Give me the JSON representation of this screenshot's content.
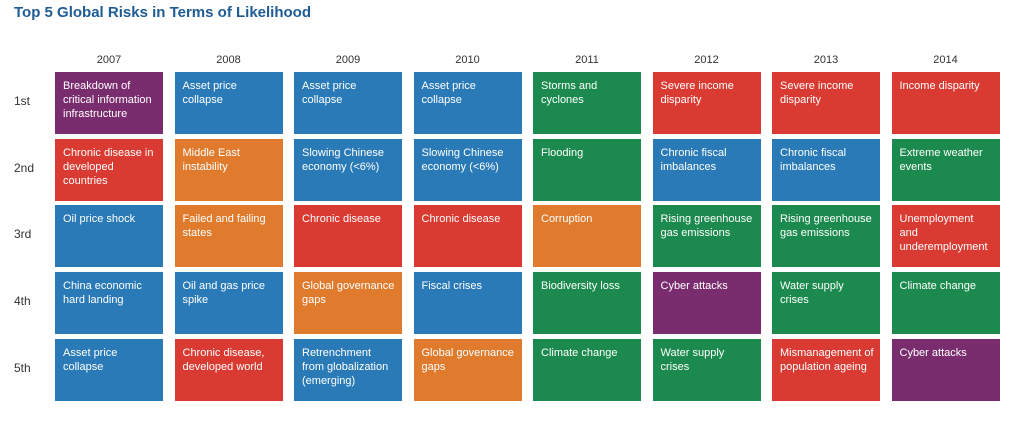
{
  "title": "Top 5 Global Risks in Terms of Likelihood",
  "colors": {
    "economic": "#2a7ab8",
    "geopolitical": "#e07b2e",
    "societal": "#d93a32",
    "environmental": "#1c8a4e",
    "technological": "#7a2d6e"
  },
  "chart_data": {
    "type": "table",
    "title": "Top 5 Global Risks in Terms of Likelihood",
    "years": [
      "2007",
      "2008",
      "2009",
      "2010",
      "2011",
      "2012",
      "2013",
      "2014"
    ],
    "ranks": [
      "1st",
      "2nd",
      "3rd",
      "4th",
      "5th"
    ],
    "columns": [
      {
        "year": "2007",
        "risks": [
          {
            "label": "Breakdown of critical information infrastructure",
            "category": "technological"
          },
          {
            "label": "Chronic disease in developed countries",
            "category": "societal"
          },
          {
            "label": "Oil price shock",
            "category": "economic"
          },
          {
            "label": "China economic hard landing",
            "category": "economic"
          },
          {
            "label": "Asset price collapse",
            "category": "economic"
          }
        ]
      },
      {
        "year": "2008",
        "risks": [
          {
            "label": "Asset price collapse",
            "category": "economic"
          },
          {
            "label": "Middle East instability",
            "category": "geopolitical"
          },
          {
            "label": "Failed and failing states",
            "category": "geopolitical"
          },
          {
            "label": "Oil and gas price spike",
            "category": "economic"
          },
          {
            "label": "Chronic disease, developed world",
            "category": "societal"
          }
        ]
      },
      {
        "year": "2009",
        "risks": [
          {
            "label": "Asset price collapse",
            "category": "economic"
          },
          {
            "label": "Slowing Chinese economy (<6%)",
            "category": "economic"
          },
          {
            "label": "Chronic disease",
            "category": "societal"
          },
          {
            "label": "Global governance gaps",
            "category": "geopolitical"
          },
          {
            "label": "Retrenchment from globalization (emerging)",
            "category": "economic"
          }
        ]
      },
      {
        "year": "2010",
        "risks": [
          {
            "label": "Asset price collapse",
            "category": "economic"
          },
          {
            "label": "Slowing Chinese economy (<6%)",
            "category": "economic"
          },
          {
            "label": "Chronic disease",
            "category": "societal"
          },
          {
            "label": "Fiscal crises",
            "category": "economic"
          },
          {
            "label": "Global governance gaps",
            "category": "geopolitical"
          }
        ]
      },
      {
        "year": "2011",
        "risks": [
          {
            "label": "Storms and cyclones",
            "category": "environmental"
          },
          {
            "label": "Flooding",
            "category": "environmental"
          },
          {
            "label": "Corruption",
            "category": "geopolitical"
          },
          {
            "label": "Biodiversity loss",
            "category": "environmental"
          },
          {
            "label": "Climate change",
            "category": "environmental"
          }
        ]
      },
      {
        "year": "2012",
        "risks": [
          {
            "label": "Severe income disparity",
            "category": "societal"
          },
          {
            "label": "Chronic fiscal imbalances",
            "category": "economic"
          },
          {
            "label": "Rising greenhouse gas emissions",
            "category": "environmental"
          },
          {
            "label": "Cyber attacks",
            "category": "technological"
          },
          {
            "label": "Water supply crises",
            "category": "environmental"
          }
        ]
      },
      {
        "year": "2013",
        "risks": [
          {
            "label": "Severe income disparity",
            "category": "societal"
          },
          {
            "label": "Chronic fiscal imbalances",
            "category": "economic"
          },
          {
            "label": "Rising greenhouse gas emissions",
            "category": "environmental"
          },
          {
            "label": "Water supply crises",
            "category": "environmental"
          },
          {
            "label": "Mismanagement of population ageing",
            "category": "societal"
          }
        ]
      },
      {
        "year": "2014",
        "risks": [
          {
            "label": "Income disparity",
            "category": "societal"
          },
          {
            "label": "Extreme weather events",
            "category": "environmental"
          },
          {
            "label": "Unemployment and underemployment",
            "category": "societal"
          },
          {
            "label": "Climate change",
            "category": "environmental"
          },
          {
            "label": "Cyber attacks",
            "category": "technological"
          }
        ]
      }
    ]
  }
}
